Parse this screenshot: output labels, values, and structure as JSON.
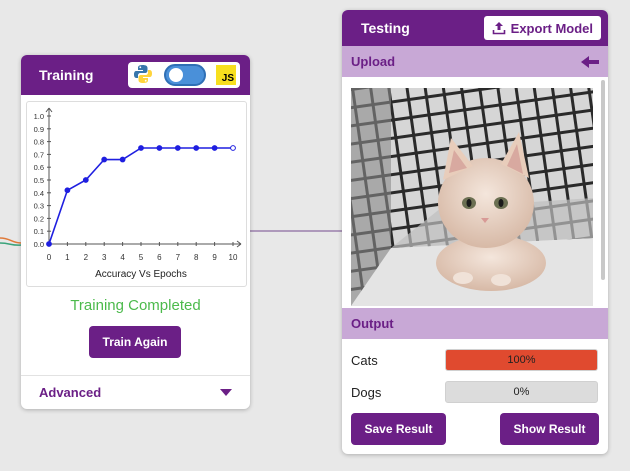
{
  "training": {
    "title": "Training",
    "js_badge": "JS",
    "status": "Training Completed",
    "status_color": "#4cba4c",
    "train_again_label": "Train Again",
    "advanced_label": "Advanced",
    "toggle_on": true
  },
  "testing": {
    "title": "Testing",
    "export_label": "Export Model",
    "upload_label": "Upload",
    "output_label": "Output",
    "outputs": [
      {
        "label": "Cats",
        "percent_text": "100%",
        "fraction": 1.0
      },
      {
        "label": "Dogs",
        "percent_text": "0%",
        "fraction": 0.0
      }
    ],
    "save_label": "Save Result",
    "show_label": "Show Result"
  },
  "colors": {
    "accent": "#6b1f86",
    "section": "#c8a8d6",
    "bar_fill": "#e04a2f",
    "line": "#1f1fe0"
  },
  "chart_data": {
    "type": "line",
    "title": "",
    "xlabel": "Accuracy Vs Epochs",
    "ylabel": "",
    "x": [
      0,
      1,
      2,
      3,
      4,
      5,
      6,
      7,
      8,
      9,
      10
    ],
    "y": [
      0.0,
      0.42,
      0.5,
      0.66,
      0.66,
      0.75,
      0.75,
      0.75,
      0.75,
      0.75,
      0.75
    ],
    "xlim": [
      0,
      10
    ],
    "ylim": [
      0,
      1.0
    ],
    "xticks": [
      "0",
      "1",
      "2",
      "3",
      "4",
      "5",
      "6",
      "7",
      "8",
      "9",
      "10"
    ],
    "yticks": [
      "0.0",
      "0.1",
      "0.2",
      "0.3",
      "0.4",
      "0.5",
      "0.6",
      "0.7",
      "0.8",
      "0.9",
      "1.0"
    ],
    "grid": false
  }
}
